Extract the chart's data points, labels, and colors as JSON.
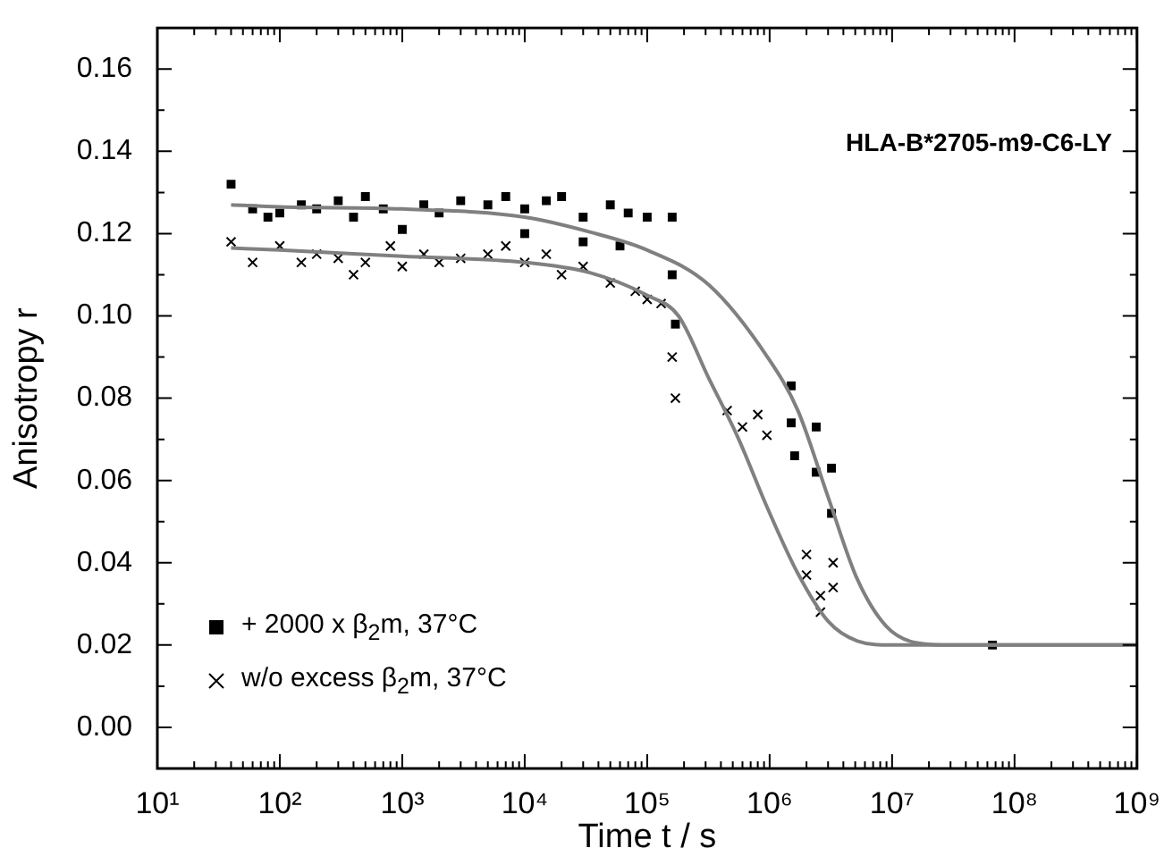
{
  "chart_data": {
    "type": "scatter",
    "xlabel": "Time t / s",
    "ylabel": "Anisotropy r",
    "annotations": [
      "HLA-B*2705-m9-C6-LY"
    ],
    "log": "x",
    "grid": false,
    "legend": "bottom left",
    "xlim": [
      10,
      1000000000
    ],
    "ylim": [
      -0.01,
      0.17
    ],
    "xticks": [
      {
        "value": 10,
        "label": "10¹"
      },
      {
        "value": 20,
        "label": null
      },
      {
        "value": 30,
        "label": null
      },
      {
        "value": 40,
        "label": null
      },
      {
        "value": 50,
        "label": null
      },
      {
        "value": 60,
        "label": null
      },
      {
        "value": 70,
        "label": null
      },
      {
        "value": 80,
        "label": null
      },
      {
        "value": 90,
        "label": null
      },
      {
        "value": 100,
        "label": "10²"
      },
      {
        "value": 200,
        "label": null
      },
      {
        "value": 300,
        "label": null
      },
      {
        "value": 400,
        "label": null
      },
      {
        "value": 500,
        "label": null
      },
      {
        "value": 600,
        "label": null
      },
      {
        "value": 700,
        "label": null
      },
      {
        "value": 800,
        "label": null
      },
      {
        "value": 900,
        "label": null
      },
      {
        "value": 1000,
        "label": "10³"
      },
      {
        "value": 2000,
        "label": null
      },
      {
        "value": 3000,
        "label": null
      },
      {
        "value": 4000,
        "label": null
      },
      {
        "value": 5000,
        "label": null
      },
      {
        "value": 6000,
        "label": null
      },
      {
        "value": 7000,
        "label": null
      },
      {
        "value": 8000,
        "label": null
      },
      {
        "value": 9000,
        "label": null
      },
      {
        "value": 10000,
        "label": "10⁴"
      },
      {
        "value": 20000,
        "label": null
      },
      {
        "value": 30000,
        "label": null
      },
      {
        "value": 40000,
        "label": null
      },
      {
        "value": 50000,
        "label": null
      },
      {
        "value": 60000,
        "label": null
      },
      {
        "value": 70000,
        "label": null
      },
      {
        "value": 80000,
        "label": null
      },
      {
        "value": 90000,
        "label": null
      },
      {
        "value": 100000,
        "label": "10⁵"
      },
      {
        "value": 200000,
        "label": null
      },
      {
        "value": 300000,
        "label": null
      },
      {
        "value": 400000,
        "label": null
      },
      {
        "value": 500000,
        "label": null
      },
      {
        "value": 600000,
        "label": null
      },
      {
        "value": 700000,
        "label": null
      },
      {
        "value": 800000,
        "label": null
      },
      {
        "value": 900000,
        "label": null
      },
      {
        "value": 1000000,
        "label": "10⁶"
      },
      {
        "value": 2000000,
        "label": null
      },
      {
        "value": 3000000,
        "label": null
      },
      {
        "value": 4000000,
        "label": null
      },
      {
        "value": 5000000,
        "label": null
      },
      {
        "value": 6000000,
        "label": null
      },
      {
        "value": 7000000,
        "label": null
      },
      {
        "value": 8000000,
        "label": null
      },
      {
        "value": 9000000,
        "label": null
      },
      {
        "value": 10000000,
        "label": "10⁷"
      },
      {
        "value": 20000000,
        "label": null
      },
      {
        "value": 30000000,
        "label": null
      },
      {
        "value": 40000000,
        "label": null
      },
      {
        "value": 50000000,
        "label": null
      },
      {
        "value": 60000000,
        "label": null
      },
      {
        "value": 70000000,
        "label": null
      },
      {
        "value": 80000000,
        "label": null
      },
      {
        "value": 90000000,
        "label": null
      },
      {
        "value": 100000000,
        "label": "10⁸"
      },
      {
        "value": 200000000,
        "label": null
      },
      {
        "value": 300000000,
        "label": null
      },
      {
        "value": 400000000,
        "label": null
      },
      {
        "value": 500000000,
        "label": null
      },
      {
        "value": 600000000,
        "label": null
      },
      {
        "value": 700000000,
        "label": null
      },
      {
        "value": 800000000,
        "label": null
      },
      {
        "value": 900000000,
        "label": null
      },
      {
        "value": 1000000000,
        "label": "10⁹"
      }
    ],
    "yticks": [
      {
        "value": 0,
        "label": "0.00"
      },
      {
        "value": 0.01,
        "label": null
      },
      {
        "value": 0.02,
        "label": "0.02"
      },
      {
        "value": 0.03,
        "label": null
      },
      {
        "value": 0.04,
        "label": "0.04"
      },
      {
        "value": 0.05,
        "label": null
      },
      {
        "value": 0.06,
        "label": "0.06"
      },
      {
        "value": 0.07,
        "label": null
      },
      {
        "value": 0.08,
        "label": "0.08"
      },
      {
        "value": 0.09,
        "label": null
      },
      {
        "value": 0.1,
        "label": "0.10"
      },
      {
        "value": 0.11,
        "label": null
      },
      {
        "value": 0.12,
        "label": "0.12"
      },
      {
        "value": 0.13,
        "label": null
      },
      {
        "value": 0.14,
        "label": "0.14"
      },
      {
        "value": 0.15,
        "label": null
      },
      {
        "value": 0.16,
        "label": "0.16"
      }
    ],
    "series": [
      {
        "name": "+ 2000 x β$_{2}$m, 37°C",
        "marker": "square",
        "color": "#000000",
        "x": [
          40,
          60,
          80,
          100,
          150,
          200,
          300,
          400,
          500,
          700,
          1000,
          1500,
          2000,
          3000,
          5000,
          7000,
          10000,
          10000,
          15000,
          20000,
          30000,
          30000,
          50000,
          60000,
          70000,
          100000,
          160000,
          160000,
          170000,
          1500000,
          1500000,
          1600000,
          2400000,
          2400000,
          3200000,
          3200000,
          66000000
        ],
        "values": [
          0.132,
          0.126,
          0.124,
          0.125,
          0.127,
          0.126,
          0.128,
          0.124,
          0.129,
          0.126,
          0.121,
          0.127,
          0.125,
          0.128,
          0.127,
          0.129,
          0.126,
          0.12,
          0.128,
          0.129,
          0.124,
          0.118,
          0.127,
          0.117,
          0.125,
          0.124,
          0.124,
          0.11,
          0.098,
          0.083,
          0.074,
          0.066,
          0.073,
          0.062,
          0.063,
          0.052,
          0.02
        ]
      },
      {
        "name": "w/o excess β$_{2}$m, 37°C",
        "marker": "cross",
        "color": "#000000",
        "x": [
          40,
          60,
          100,
          150,
          200,
          300,
          400,
          500,
          800,
          1000,
          1500,
          2000,
          3000,
          5000,
          7000,
          10000,
          15000,
          20000,
          30000,
          50000,
          80000,
          100000,
          130000,
          160000,
          170000,
          450000,
          600000,
          800000,
          950000,
          2000000,
          2000000,
          2600000,
          2600000,
          3300000,
          3300000
        ],
        "values": [
          0.118,
          0.113,
          0.117,
          0.113,
          0.115,
          0.114,
          0.11,
          0.113,
          0.117,
          0.112,
          0.115,
          0.113,
          0.114,
          0.115,
          0.117,
          0.113,
          0.115,
          0.11,
          0.112,
          0.108,
          0.106,
          0.104,
          0.103,
          0.09,
          0.08,
          0.077,
          0.073,
          0.076,
          0.071,
          0.042,
          0.037,
          0.032,
          0.028,
          0.04,
          0.034
        ]
      },
      {
        "type": "line",
        "marker": "none",
        "color": "#808080",
        "x": [
          40,
          100,
          1000,
          10000,
          34000,
          100000,
          320000,
          960000,
          1700000,
          3000000,
          5200000,
          9000000,
          16000000,
          30000000,
          1000000000
        ],
        "values": [
          0.127,
          0.1265,
          0.126,
          0.124,
          0.1204,
          0.116,
          0.1075,
          0.09,
          0.077,
          0.056,
          0.036,
          0.0245,
          0.0205,
          0.02,
          0.02
        ]
      },
      {
        "type": "line",
        "marker": "none",
        "color": "#808080",
        "x": [
          40,
          100,
          1000,
          10000,
          34000,
          100000,
          180000,
          320000,
          550000,
          960000,
          1700000,
          3000000,
          5200000,
          10000000,
          1000000000
        ],
        "values": [
          0.1165,
          0.116,
          0.1145,
          0.113,
          0.1105,
          0.105,
          0.1,
          0.0847,
          0.0705,
          0.0533,
          0.0374,
          0.0258,
          0.021,
          0.02,
          0.02
        ]
      }
    ]
  }
}
